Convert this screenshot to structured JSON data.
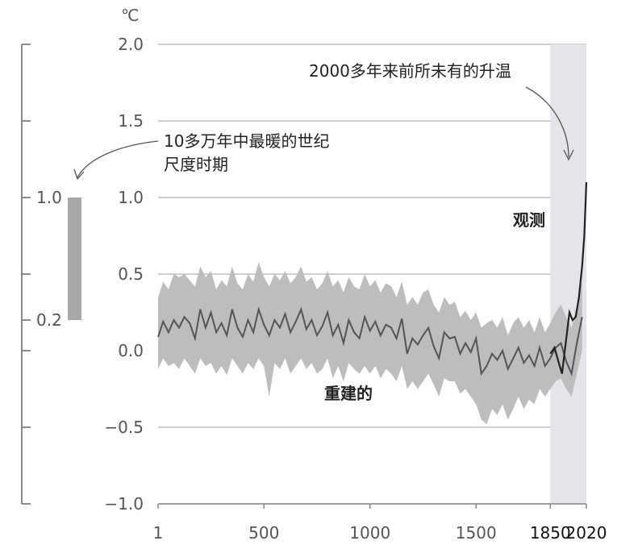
{
  "chart_data": [
    {
      "type": "line",
      "unit": "℃",
      "xlim": [
        1,
        2020
      ],
      "ylim": [
        -1.0,
        2.0
      ],
      "y_ticks": [
        "2.0",
        "1.5",
        "1.0",
        "0.5",
        "0.0",
        "−0.5",
        "−1.0"
      ],
      "x_ticks": [
        "1",
        "500",
        "1000",
        "1500",
        "1850",
        "2020"
      ],
      "x_tick_values": [
        1,
        500,
        1000,
        1500,
        1850,
        2020
      ],
      "grid": true,
      "shaded_period": [
        1850,
        2020
      ],
      "annotations": {
        "unprecedented": "2000多年来前所未有的升温",
        "observed": "观测",
        "reconstructed": "重建的",
        "warmest_line1": "10多万年中最暖的世纪",
        "warmest_line2": "尺度时期"
      },
      "series": [
        {
          "name": "重建的",
          "x": [
            1,
            25,
            50,
            75,
            100,
            125,
            150,
            175,
            200,
            225,
            250,
            275,
            300,
            325,
            350,
            375,
            400,
            425,
            450,
            475,
            500,
            525,
            550,
            575,
            600,
            625,
            650,
            675,
            700,
            725,
            750,
            775,
            800,
            825,
            850,
            875,
            900,
            925,
            950,
            975,
            1000,
            1025,
            1050,
            1075,
            1100,
            1125,
            1150,
            1175,
            1200,
            1225,
            1250,
            1275,
            1300,
            1325,
            1350,
            1375,
            1400,
            1425,
            1450,
            1475,
            1500,
            1525,
            1550,
            1575,
            1600,
            1625,
            1650,
            1675,
            1700,
            1725,
            1750,
            1775,
            1800,
            1825,
            1850,
            1875,
            1900,
            1925,
            1950,
            1975,
            2000
          ],
          "y": [
            0.09,
            0.19,
            0.12,
            0.2,
            0.15,
            0.22,
            0.18,
            0.08,
            0.27,
            0.15,
            0.25,
            0.12,
            0.18,
            0.1,
            0.27,
            0.15,
            0.09,
            0.2,
            0.12,
            0.27,
            0.17,
            0.1,
            0.2,
            0.15,
            0.24,
            0.12,
            0.19,
            0.27,
            0.14,
            0.2,
            0.1,
            0.16,
            0.25,
            0.1,
            0.17,
            0.05,
            0.2,
            0.12,
            0.08,
            0.22,
            0.13,
            0.19,
            0.1,
            0.17,
            0.15,
            0.08,
            0.21,
            -0.02,
            0.08,
            0.04,
            0.1,
            0.15,
            0.03,
            -0.05,
            0.12,
            0.08,
            0.09,
            -0.02,
            0.05,
            -0.01,
            0.08,
            -0.15,
            -0.1,
            -0.02,
            -0.06,
            0.0,
            -0.12,
            -0.05,
            0.02,
            -0.08,
            -0.03,
            -0.1,
            0.02,
            -0.1,
            -0.05,
            0.02,
            0.05,
            -0.07,
            -0.15,
            0.05,
            0.22
          ],
          "upper": [
            0.35,
            0.45,
            0.4,
            0.5,
            0.48,
            0.5,
            0.46,
            0.42,
            0.55,
            0.48,
            0.52,
            0.4,
            0.46,
            0.42,
            0.55,
            0.44,
            0.4,
            0.5,
            0.45,
            0.58,
            0.48,
            0.42,
            0.5,
            0.46,
            0.52,
            0.44,
            0.48,
            0.55,
            0.45,
            0.48,
            0.4,
            0.44,
            0.52,
            0.42,
            0.46,
            0.38,
            0.48,
            0.42,
            0.4,
            0.5,
            0.42,
            0.46,
            0.38,
            0.44,
            0.42,
            0.35,
            0.45,
            0.3,
            0.35,
            0.3,
            0.38,
            0.4,
            0.3,
            0.25,
            0.35,
            0.3,
            0.32,
            0.22,
            0.26,
            0.2,
            0.25,
            0.15,
            0.18,
            0.2,
            0.15,
            0.22,
            0.1,
            0.18,
            0.22,
            0.15,
            0.2,
            0.12,
            0.22,
            0.12,
            0.18,
            0.25,
            0.3,
            0.22,
            0.15,
            0.3,
            0.45
          ],
          "lower": [
            -0.12,
            -0.05,
            -0.1,
            -0.08,
            -0.12,
            -0.05,
            -0.1,
            -0.15,
            -0.05,
            -0.1,
            -0.08,
            -0.15,
            -0.1,
            -0.16,
            -0.05,
            -0.1,
            -0.15,
            -0.08,
            -0.12,
            -0.05,
            -0.1,
            -0.3,
            -0.08,
            -0.12,
            -0.05,
            -0.15,
            -0.1,
            -0.05,
            -0.12,
            -0.08,
            -0.15,
            -0.12,
            -0.05,
            -0.18,
            -0.1,
            -0.2,
            -0.08,
            -0.12,
            -0.15,
            -0.1,
            -0.15,
            -0.1,
            -0.18,
            -0.12,
            -0.15,
            -0.2,
            -0.1,
            -0.25,
            -0.2,
            -0.25,
            -0.2,
            -0.15,
            -0.22,
            -0.3,
            -0.18,
            -0.2,
            -0.2,
            -0.28,
            -0.25,
            -0.3,
            -0.35,
            -0.45,
            -0.48,
            -0.38,
            -0.42,
            -0.35,
            -0.45,
            -0.38,
            -0.3,
            -0.38,
            -0.32,
            -0.35,
            -0.25,
            -0.3,
            -0.25,
            -0.2,
            -0.18,
            -0.25,
            -0.3,
            -0.15,
            0.0
          ]
        },
        {
          "name": "观测",
          "x": [
            1850,
            1870,
            1890,
            1905,
            1920,
            1940,
            1955,
            1970,
            1985,
            2000,
            2010,
            2020
          ],
          "y": [
            -0.02,
            0.02,
            -0.08,
            -0.15,
            0.02,
            0.25,
            0.2,
            0.22,
            0.35,
            0.55,
            0.75,
            1.1
          ]
        }
      ]
    },
    {
      "type": "bar",
      "title": "10多万年中最暖的世纪尺度时期",
      "ylim": [
        -1.0,
        2.0
      ],
      "y_ticks": [
        "1.0",
        "0.2"
      ],
      "range": [
        0.2,
        1.0
      ]
    }
  ]
}
